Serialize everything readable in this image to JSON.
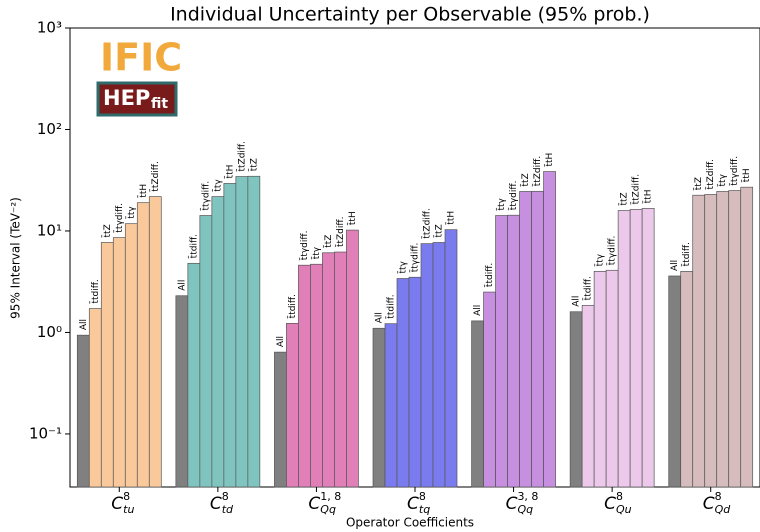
{
  "chart_data": {
    "type": "bar",
    "scale": "log",
    "title": "Individual Uncertainty per Observable (95% prob.)",
    "x_label": "Operator Coefficients",
    "y_label": "95% Interval (TeV⁻²)",
    "logos": {
      "ific": "IFIC",
      "hep": "HEP",
      "fit": "fit"
    },
    "category_symbol": "C",
    "all_color": "#808080",
    "ylim": [
      0.03,
      1000
    ],
    "yticks": [
      {
        "value": 0.1,
        "label": "10⁻¹"
      },
      {
        "value": 1,
        "label": "10⁰"
      },
      {
        "value": 10,
        "label": "10¹"
      },
      {
        "value": 100,
        "label": "10²"
      },
      {
        "value": 1000,
        "label": "10³"
      }
    ],
    "groups": [
      {
        "category": {
          "sup": "8",
          "sub": "tu"
        },
        "color": "#f9c99b",
        "labels": [
          "All",
          "t̄tdiff.",
          "t̄tZ",
          "t̄tγdiff.",
          "t̄tγ",
          "t̄tH",
          "t̄tZdiff."
        ],
        "values": [
          0.94,
          1.72,
          7.7,
          8.6,
          11.8,
          19,
          21.8
        ]
      },
      {
        "category": {
          "sup": "8",
          "sub": "td"
        },
        "color": "#80c4c0",
        "labels": [
          "All",
          "t̄tdiff.",
          "t̄tγdiff.",
          "t̄tγ",
          "t̄tH",
          "t̄tZdiff.",
          "t̄tZ"
        ],
        "values": [
          2.3,
          4.8,
          14.2,
          21.8,
          29.4,
          34.4,
          34.6
        ]
      },
      {
        "category": {
          "sup": "1, 8",
          "sub": "Qq"
        },
        "color": "#e07fb8",
        "labels": [
          "All",
          "t̄tdiff.",
          "t̄tγdiff.",
          "t̄tγ",
          "t̄tZ",
          "t̄tZdiff.",
          "t̄tH"
        ],
        "values": [
          0.64,
          1.23,
          4.6,
          4.7,
          6.1,
          6.2,
          10.2
        ]
      },
      {
        "category": {
          "sup": "8",
          "sub": "tq"
        },
        "color": "#7b7bf0",
        "labels": [
          "All",
          "t̄tdiff.",
          "t̄tγ",
          "t̄tγdiff.",
          "t̄tZdiff.",
          "t̄tZ",
          "t̄tH"
        ],
        "values": [
          1.1,
          1.22,
          3.4,
          3.5,
          7.5,
          7.7,
          10.3
        ]
      },
      {
        "category": {
          "sup": "3, 8",
          "sub": "Qq"
        },
        "color": "#c68fe0",
        "labels": [
          "All",
          "t̄tdiff.",
          "t̄tγ",
          "t̄tγdiff.",
          "t̄tZ",
          "t̄tZdiff.",
          "t̄tH"
        ],
        "values": [
          1.3,
          2.5,
          14.2,
          14.3,
          24.5,
          24.6,
          38.5
        ]
      },
      {
        "category": {
          "sup": "8",
          "sub": "Qu"
        },
        "color": "#ecc8ea",
        "labels": [
          "All",
          "t̄tdiff.",
          "t̄tγ",
          "t̄tγdiff.",
          "t̄tZ",
          "t̄tZdiff.",
          "t̄tH"
        ],
        "values": [
          1.6,
          1.85,
          4.0,
          4.1,
          15.9,
          16.3,
          16.7
        ]
      },
      {
        "category": {
          "sup": "8",
          "sub": "Qd"
        },
        "color": "#d6bcbc",
        "labels": [
          "All",
          "t̄tdiff.",
          "t̄tZ",
          "t̄tZdiff.",
          "t̄tγ",
          "t̄tγdiff.",
          "t̄tH"
        ],
        "values": [
          3.6,
          4.0,
          22.5,
          22.9,
          24.5,
          25,
          27
        ]
      }
    ]
  }
}
